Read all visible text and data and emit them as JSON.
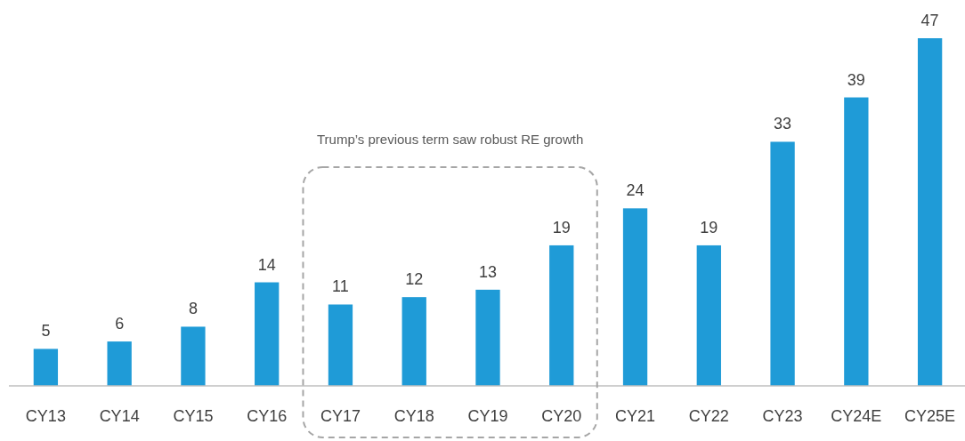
{
  "chart_data": {
    "type": "bar",
    "categories": [
      "CY13",
      "CY14",
      "CY15",
      "CY16",
      "CY17",
      "CY18",
      "CY19",
      "CY20",
      "CY21",
      "CY22",
      "CY23",
      "CY24E",
      "CY25E"
    ],
    "values": [
      5,
      6,
      8,
      14,
      11,
      12,
      13,
      19,
      24,
      19,
      33,
      39,
      47
    ],
    "color": "#1f9bd7",
    "data_labels": true,
    "annotations": [
      "Trump’s previous term saw robust RE growth"
    ]
  }
}
